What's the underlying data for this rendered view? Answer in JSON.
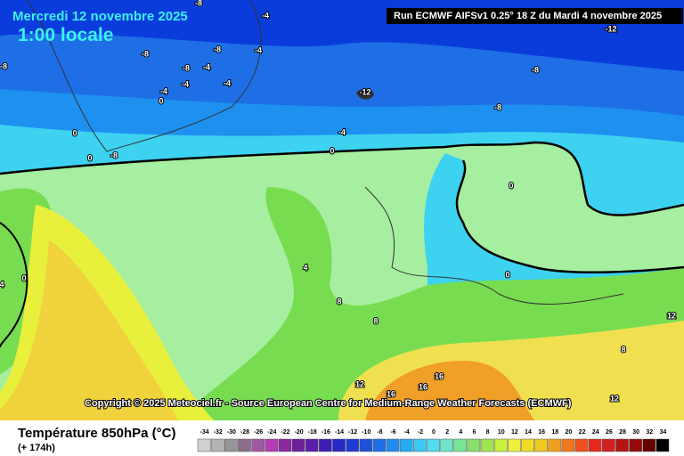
{
  "header": {
    "title": "Mercredi 12 novembre 2025",
    "subtitle": "1:00 locale",
    "run": "Run ECMWF AIFSv1 0.25° 18 Z du Mardi 4 novembre 2025"
  },
  "map": {
    "contour_labels": [
      "-8",
      "-4",
      "-12",
      "-8",
      "-8",
      "-8",
      "-4",
      "-4",
      "-4",
      "-4",
      "-4",
      "0",
      "-8",
      "-8",
      "-12",
      "-8",
      "-4",
      "0",
      "0",
      "-8",
      "0",
      "0",
      "4",
      "8",
      "8",
      "0",
      "0",
      "4",
      "12",
      "8",
      "12",
      "16",
      "16",
      "16",
      "12"
    ],
    "copyright": "Copyright © 2025 Meteociel.fr - Source European Centre for Medium-Range Weather Forecasts (ECMWF)"
  },
  "legend": {
    "title": "Température 850hPa (°C)",
    "lead": "(+ 174h)",
    "values": [
      -34,
      -32,
      -30,
      -28,
      -26,
      -24,
      -22,
      -20,
      -18,
      -16,
      -14,
      -12,
      -10,
      -8,
      -6,
      -4,
      -2,
      0,
      2,
      4,
      6,
      8,
      10,
      12,
      14,
      16,
      18,
      20,
      22,
      24,
      26,
      28,
      30,
      32,
      34
    ],
    "colors": [
      "#d0d0d0",
      "#b4b4b4",
      "#969696",
      "#8c6e8c",
      "#a05aa0",
      "#b43cb4",
      "#8c28a0",
      "#6e1e96",
      "#5a1eaa",
      "#3c1eb4",
      "#2828c8",
      "#1e3cd2",
      "#1e50dc",
      "#1e6ee6",
      "#1e8cf0",
      "#28aaf0",
      "#3cc8f0",
      "#50dcf0",
      "#6ee6c8",
      "#78e696",
      "#8cdc6e",
      "#a0e650",
      "#c8f03c",
      "#f0f03c",
      "#f0dc28",
      "#f0c81e",
      "#f0a01e",
      "#f0781e",
      "#f0501e",
      "#e6281e",
      "#d21e1e",
      "#b41414",
      "#960a0a",
      "#640000",
      "#000000"
    ]
  }
}
